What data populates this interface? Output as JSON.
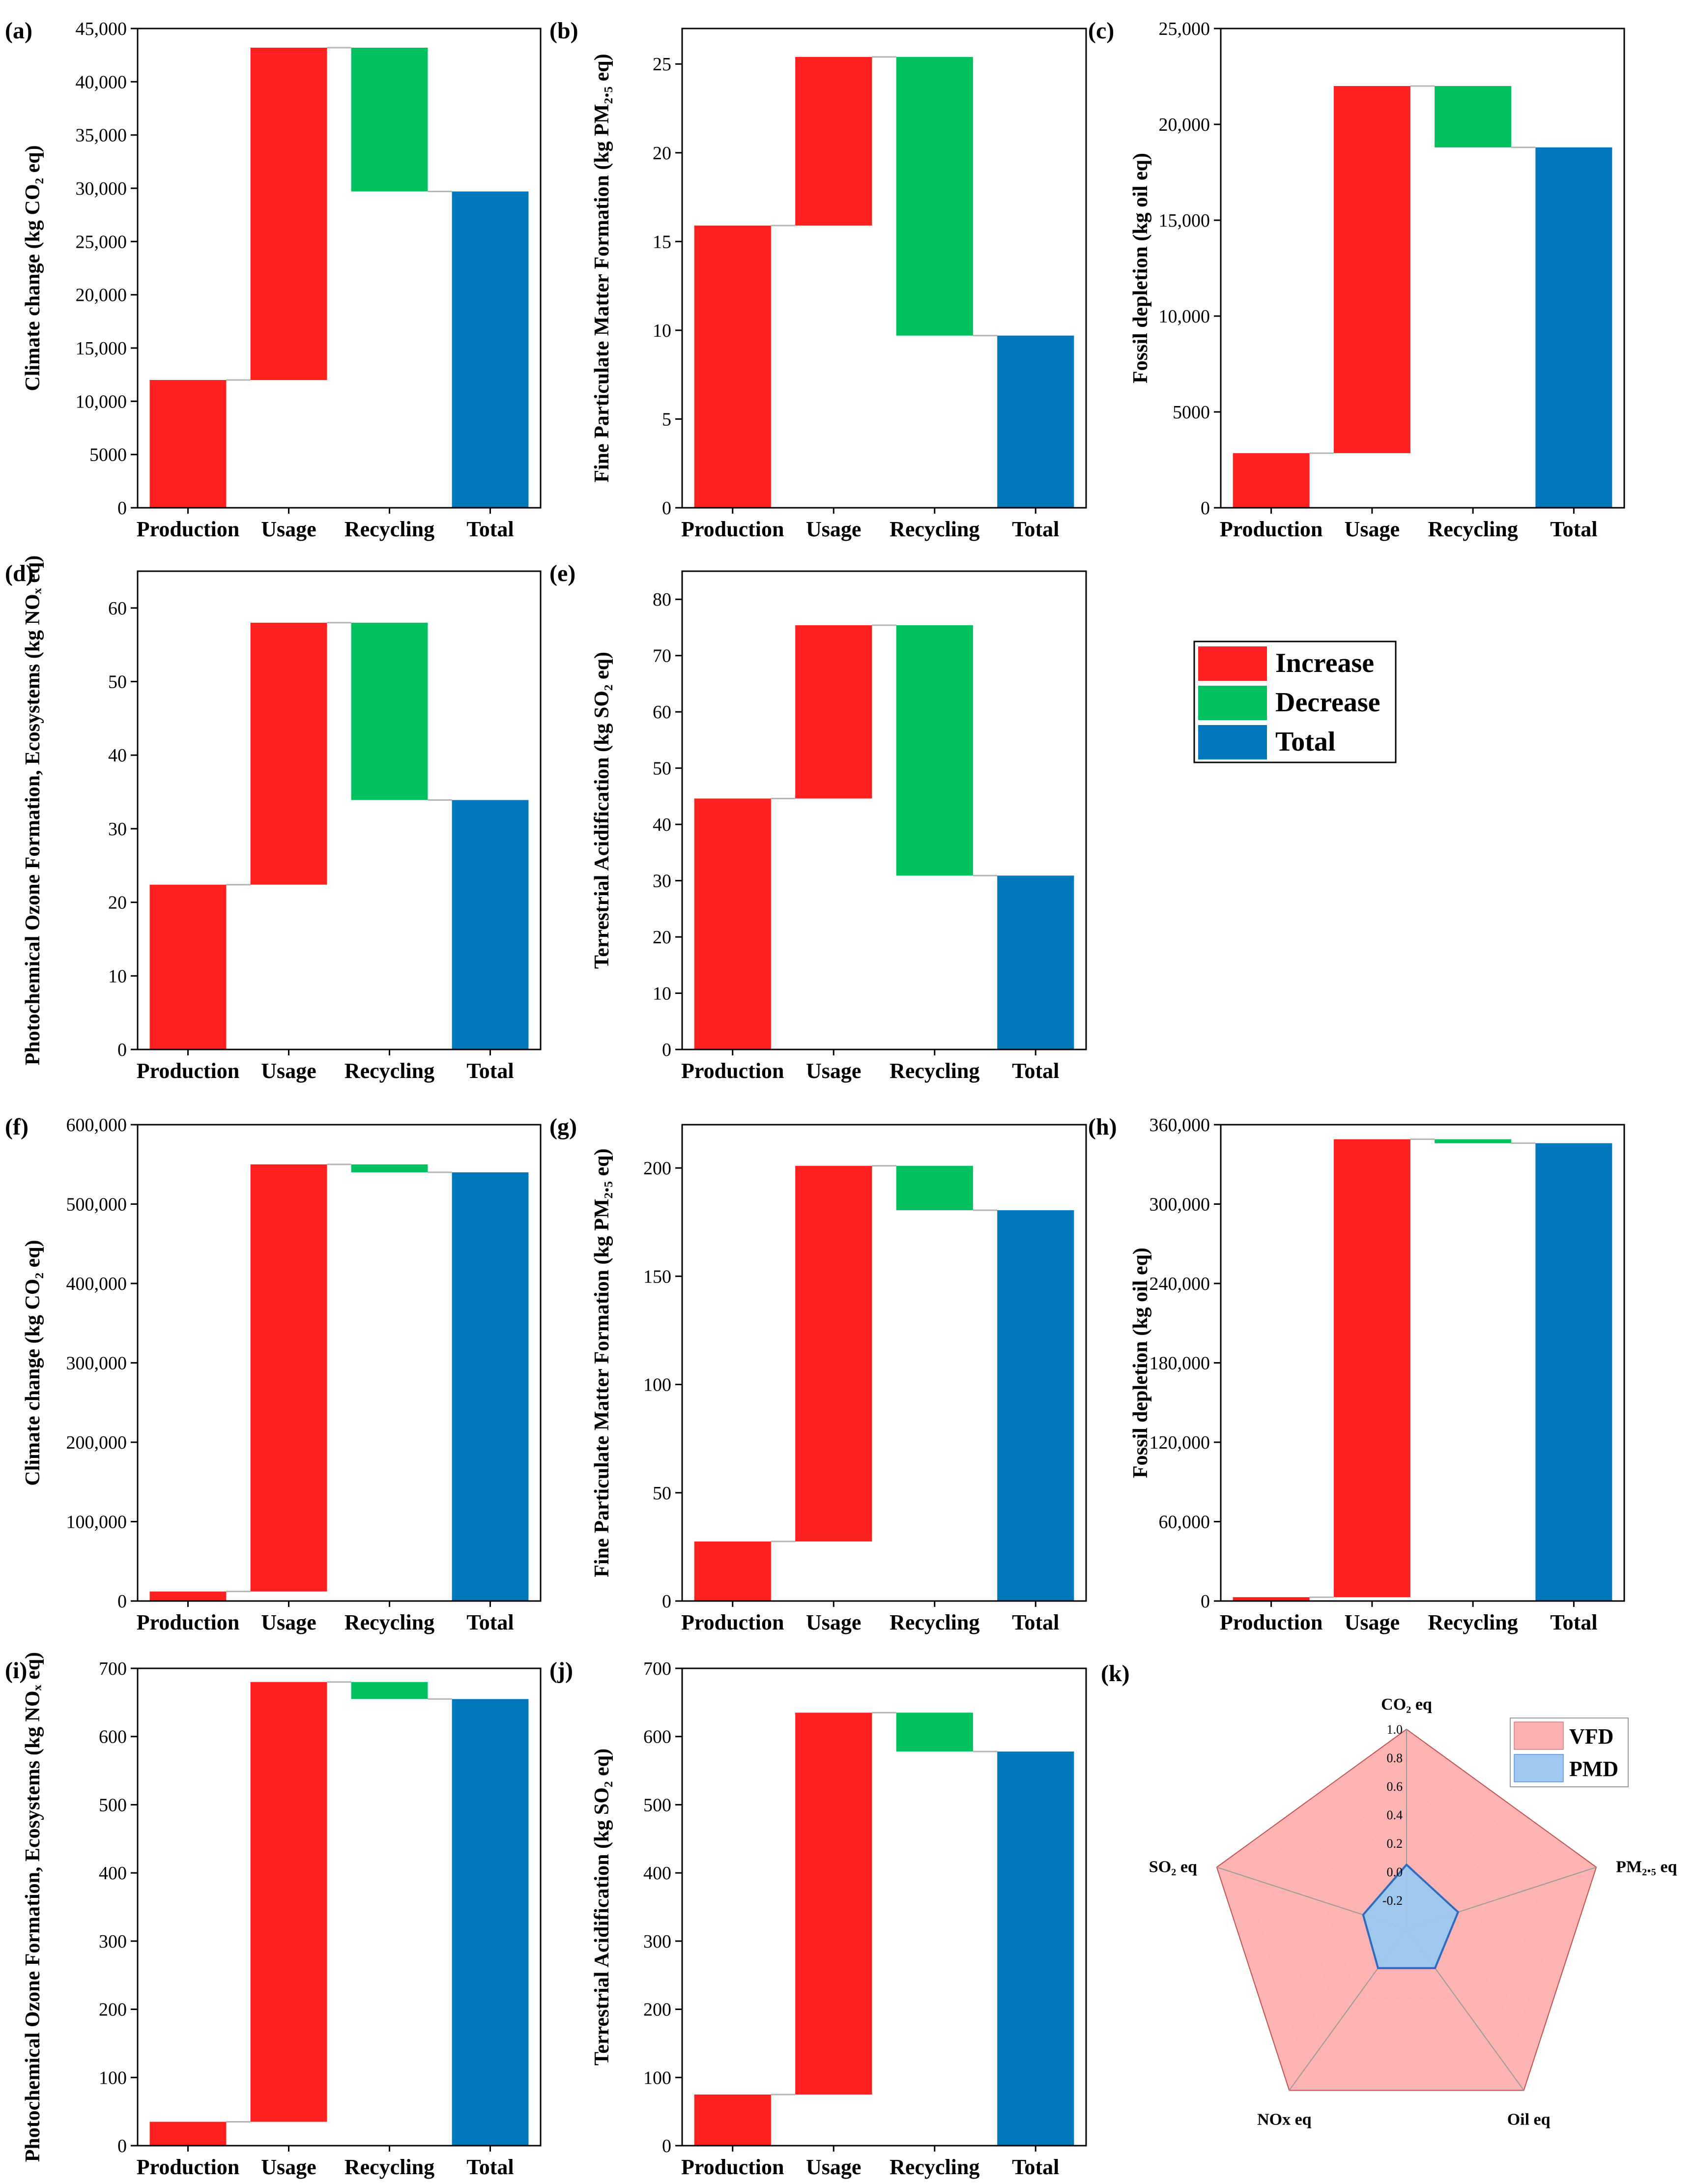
{
  "legend": {
    "items": [
      {
        "label": "Increase",
        "color": "#FF2020"
      },
      {
        "label": "Decrease",
        "color": "#00C060"
      },
      {
        "label": "Total",
        "color": "#0077BB"
      }
    ]
  },
  "chart_data": [
    {
      "panel": "(a)",
      "type": "bar",
      "subtype": "waterfall",
      "categories": [
        "Production",
        "Usage",
        "Recycling",
        "Total"
      ],
      "steps": [
        {
          "kind": "increase",
          "value": 12000
        },
        {
          "kind": "increase",
          "value": 31200
        },
        {
          "kind": "decrease",
          "value": -13500
        },
        {
          "kind": "total",
          "value": 29700
        }
      ],
      "ylabel": "Climate change (kg CO₂ eq)",
      "ylim": [
        0,
        45000
      ],
      "yticks": [
        {
          "v": 0,
          "label": "0"
        },
        {
          "v": 5000,
          "label": "5000"
        },
        {
          "v": 10000,
          "label": "10,000"
        },
        {
          "v": 15000,
          "label": "15,000"
        },
        {
          "v": 20000,
          "label": "20,000"
        },
        {
          "v": 25000,
          "label": "25,000"
        },
        {
          "v": 30000,
          "label": "30,000"
        },
        {
          "v": 35000,
          "label": "35,000"
        },
        {
          "v": 40000,
          "label": "40,000"
        },
        {
          "v": 45000,
          "label": "45,000"
        }
      ]
    },
    {
      "panel": "(b)",
      "type": "bar",
      "subtype": "waterfall",
      "categories": [
        "Production",
        "Usage",
        "Recycling",
        "Total"
      ],
      "steps": [
        {
          "kind": "increase",
          "value": 15.9
        },
        {
          "kind": "increase",
          "value": 9.5
        },
        {
          "kind": "decrease",
          "value": -15.7
        },
        {
          "kind": "total",
          "value": 9.7
        }
      ],
      "ylabel": "Fine Particulate Matter Formation (kg PM₂.₅ eq)",
      "ylim": [
        0,
        27
      ],
      "yticks": [
        {
          "v": 0,
          "label": "0"
        },
        {
          "v": 5,
          "label": "5"
        },
        {
          "v": 10,
          "label": "10"
        },
        {
          "v": 15,
          "label": "15"
        },
        {
          "v": 20,
          "label": "20"
        },
        {
          "v": 25,
          "label": "25"
        }
      ]
    },
    {
      "panel": "(c)",
      "type": "bar",
      "subtype": "waterfall",
      "categories": [
        "Production",
        "Usage",
        "Recycling",
        "Total"
      ],
      "steps": [
        {
          "kind": "increase",
          "value": 2850
        },
        {
          "kind": "increase",
          "value": 19150
        },
        {
          "kind": "decrease",
          "value": -3200
        },
        {
          "kind": "total",
          "value": 18800
        }
      ],
      "ylabel": "Fossil depletion (kg oil eq)",
      "ylim": [
        0,
        25000
      ],
      "yticks": [
        {
          "v": 0,
          "label": "0"
        },
        {
          "v": 5000,
          "label": "5000"
        },
        {
          "v": 10000,
          "label": "10,000"
        },
        {
          "v": 15000,
          "label": "15,000"
        },
        {
          "v": 20000,
          "label": "20,000"
        },
        {
          "v": 25000,
          "label": "25,000"
        }
      ]
    },
    {
      "panel": "(d)",
      "type": "bar",
      "subtype": "waterfall",
      "categories": [
        "Production",
        "Usage",
        "Recycling",
        "Total"
      ],
      "steps": [
        {
          "kind": "increase",
          "value": 22.4
        },
        {
          "kind": "increase",
          "value": 35.6
        },
        {
          "kind": "decrease",
          "value": -24.1
        },
        {
          "kind": "total",
          "value": 33.9
        }
      ],
      "ylabel": "Photochemical Ozone Formation, Ecosystems (kg NOₓ eq)",
      "ylim": [
        0,
        65
      ],
      "yticks": [
        {
          "v": 0,
          "label": "0"
        },
        {
          "v": 10,
          "label": "10"
        },
        {
          "v": 20,
          "label": "20"
        },
        {
          "v": 30,
          "label": "30"
        },
        {
          "v": 40,
          "label": "40"
        },
        {
          "v": 50,
          "label": "50"
        },
        {
          "v": 60,
          "label": "60"
        }
      ]
    },
    {
      "panel": "(e)",
      "type": "bar",
      "subtype": "waterfall",
      "categories": [
        "Production",
        "Usage",
        "Recycling",
        "Total"
      ],
      "steps": [
        {
          "kind": "increase",
          "value": 44.6
        },
        {
          "kind": "increase",
          "value": 30.8
        },
        {
          "kind": "decrease",
          "value": -44.5
        },
        {
          "kind": "total",
          "value": 30.9
        }
      ],
      "ylabel": "Terrestrial Acidification (kg SO₂ eq)",
      "ylim": [
        0,
        85
      ],
      "yticks": [
        {
          "v": 0,
          "label": "0"
        },
        {
          "v": 10,
          "label": "10"
        },
        {
          "v": 20,
          "label": "20"
        },
        {
          "v": 30,
          "label": "30"
        },
        {
          "v": 40,
          "label": "40"
        },
        {
          "v": 50,
          "label": "50"
        },
        {
          "v": 60,
          "label": "60"
        },
        {
          "v": 70,
          "label": "70"
        },
        {
          "v": 80,
          "label": "80"
        }
      ]
    },
    {
      "panel": "(f)",
      "type": "bar",
      "subtype": "waterfall",
      "categories": [
        "Production",
        "Usage",
        "Recycling",
        "Total"
      ],
      "steps": [
        {
          "kind": "increase",
          "value": 12000
        },
        {
          "kind": "increase",
          "value": 538000
        },
        {
          "kind": "decrease",
          "value": -10000
        },
        {
          "kind": "total",
          "value": 540000
        }
      ],
      "ylabel": "Climate change (kg CO₂ eq)",
      "ylim": [
        0,
        600000
      ],
      "yticks": [
        {
          "v": 0,
          "label": "0"
        },
        {
          "v": 100000,
          "label": "100,000"
        },
        {
          "v": 200000,
          "label": "200,000"
        },
        {
          "v": 300000,
          "label": "300,000"
        },
        {
          "v": 400000,
          "label": "400,000"
        },
        {
          "v": 500000,
          "label": "500,000"
        },
        {
          "v": 600000,
          "label": "600,000"
        }
      ]
    },
    {
      "panel": "(g)",
      "type": "bar",
      "subtype": "waterfall",
      "categories": [
        "Production",
        "Usage",
        "Recycling",
        "Total"
      ],
      "steps": [
        {
          "kind": "increase",
          "value": 27.5
        },
        {
          "kind": "increase",
          "value": 173.5
        },
        {
          "kind": "decrease",
          "value": -20.5
        },
        {
          "kind": "total",
          "value": 180.5
        }
      ],
      "ylabel": "Fine Particulate Matter Formation (kg PM₂.₅ eq)",
      "ylim": [
        0,
        220
      ],
      "yticks": [
        {
          "v": 0,
          "label": "0"
        },
        {
          "v": 50,
          "label": "50"
        },
        {
          "v": 100,
          "label": "100"
        },
        {
          "v": 150,
          "label": "150"
        },
        {
          "v": 200,
          "label": "200"
        }
      ]
    },
    {
      "panel": "(h)",
      "type": "bar",
      "subtype": "waterfall",
      "categories": [
        "Production",
        "Usage",
        "Recycling",
        "Total"
      ],
      "steps": [
        {
          "kind": "increase",
          "value": 2900
        },
        {
          "kind": "increase",
          "value": 346100
        },
        {
          "kind": "decrease",
          "value": -3000
        },
        {
          "kind": "total",
          "value": 346000
        }
      ],
      "ylabel": "Fossil depletion (kg oil eq)",
      "ylim": [
        0,
        360000
      ],
      "yticks": [
        {
          "v": 0,
          "label": "0"
        },
        {
          "v": 60000,
          "label": "60,000"
        },
        {
          "v": 120000,
          "label": "120,000"
        },
        {
          "v": 180000,
          "label": "180,000"
        },
        {
          "v": 240000,
          "label": "240,000"
        },
        {
          "v": 300000,
          "label": "300,000"
        },
        {
          "v": 360000,
          "label": "360,000"
        }
      ]
    },
    {
      "panel": "(i)",
      "type": "bar",
      "subtype": "waterfall",
      "categories": [
        "Production",
        "Usage",
        "Recycling",
        "Total"
      ],
      "steps": [
        {
          "kind": "increase",
          "value": 35
        },
        {
          "kind": "increase",
          "value": 645
        },
        {
          "kind": "decrease",
          "value": -25
        },
        {
          "kind": "total",
          "value": 655
        }
      ],
      "ylabel": "Photochemical Ozone Formation, Ecosystems (kg NOₓ eq)",
      "ylim": [
        0,
        700
      ],
      "yticks": [
        {
          "v": 0,
          "label": "0"
        },
        {
          "v": 100,
          "label": "100"
        },
        {
          "v": 200,
          "label": "200"
        },
        {
          "v": 300,
          "label": "300"
        },
        {
          "v": 400,
          "label": "400"
        },
        {
          "v": 500,
          "label": "500"
        },
        {
          "v": 600,
          "label": "600"
        },
        {
          "v": 700,
          "label": "700"
        }
      ]
    },
    {
      "panel": "(j)",
      "type": "bar",
      "subtype": "waterfall",
      "categories": [
        "Production",
        "Usage",
        "Recycling",
        "Total"
      ],
      "steps": [
        {
          "kind": "increase",
          "value": 75
        },
        {
          "kind": "increase",
          "value": 560
        },
        {
          "kind": "decrease",
          "value": -57
        },
        {
          "kind": "total",
          "value": 578
        }
      ],
      "ylabel": "Terrestrial Acidification (kg SO₂ eq)",
      "ylim": [
        0,
        700
      ],
      "yticks": [
        {
          "v": 0,
          "label": "0"
        },
        {
          "v": 100,
          "label": "100"
        },
        {
          "v": 200,
          "label": "200"
        },
        {
          "v": 300,
          "label": "300"
        },
        {
          "v": 400,
          "label": "400"
        },
        {
          "v": 500,
          "label": "500"
        },
        {
          "v": 600,
          "label": "600"
        },
        {
          "v": 700,
          "label": "700"
        }
      ]
    },
    {
      "panel": "(k)",
      "type": "radar",
      "axes": [
        "CO₂ eq",
        "PM₂.₅ eq",
        "Oil eq",
        "NOx eq",
        "SO₂ eq"
      ],
      "rlim": [
        -0.4,
        1.0
      ],
      "rticks": [
        -0.2,
        0.0,
        0.2,
        0.4,
        0.6,
        0.8,
        1.0
      ],
      "series": [
        {
          "name": "VFD",
          "values": [
            1.0,
            1.0,
            1.0,
            1.0,
            1.0
          ],
          "fill": "#FFB0B0",
          "stroke": "#C05050"
        },
        {
          "name": "PMD",
          "values": [
            0.05,
            -0.02,
            -0.06,
            -0.06,
            -0.08
          ],
          "fill": "#9EC8F0",
          "stroke": "#2F6CC0"
        }
      ]
    }
  ]
}
